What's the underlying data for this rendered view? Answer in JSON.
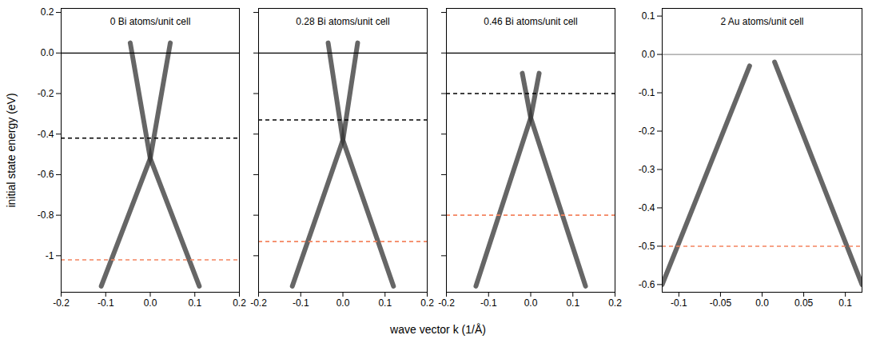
{
  "figure": {
    "ylabel": "initial state energy (eV)",
    "xlabel": "wave vector k (1/Å)"
  },
  "chart_data": [
    {
      "type": "line",
      "title": "0 Bi atoms/unit cell",
      "xlim": [
        -0.2,
        0.2
      ],
      "ylim": [
        -1.18,
        0.22
      ],
      "xticks": [
        -0.2,
        -0.1,
        {
          "value": 0,
          "label": "0.0"
        },
        0.1,
        0.2
      ],
      "yticks": [
        0.2,
        {
          "value": 0,
          "label": "0.0"
        },
        -0.2,
        -0.4,
        -0.6,
        -0.8,
        -1.0
      ],
      "series": [
        {
          "color": "#333333",
          "x": [
            -0.11,
            0,
            0.045
          ],
          "values": [
            -1.15,
            -0.52,
            0.05
          ]
        },
        {
          "color": "#333333",
          "x": [
            0.11,
            0,
            -0.045
          ],
          "values": [
            -1.15,
            -0.52,
            0.05
          ]
        }
      ],
      "reference_lines": [
        {
          "value": 0,
          "color": "#000000",
          "line_style": "solid"
        },
        {
          "value": -0.42,
          "color": "#000000",
          "line_style": "dashed"
        },
        {
          "value": -1.02,
          "color": "#f4845f",
          "line_style": "dashed"
        }
      ]
    },
    {
      "type": "line",
      "title": "0.28 Bi atoms/unit cell",
      "xlim": [
        -0.2,
        0.2
      ],
      "ylim": [
        -1.18,
        0.22
      ],
      "xticks": [
        -0.2,
        -0.1,
        {
          "value": 0,
          "label": "0.0"
        },
        0.1,
        0.2
      ],
      "yticks": [
        0.2,
        {
          "value": 0,
          "label": "0.0"
        },
        -0.2,
        -0.4,
        -0.6,
        -0.8,
        -1.0
      ],
      "tick_labels": "x",
      "series": [
        {
          "color": "#333333",
          "x": [
            -0.12,
            0,
            0.035
          ],
          "values": [
            -1.15,
            -0.43,
            0.05
          ]
        },
        {
          "color": "#333333",
          "x": [
            0.12,
            0,
            -0.035
          ],
          "values": [
            -1.15,
            -0.43,
            0.05
          ]
        }
      ],
      "reference_lines": [
        {
          "value": 0,
          "color": "#000000",
          "line_style": "solid"
        },
        {
          "value": -0.33,
          "color": "#000000",
          "line_style": "dashed"
        },
        {
          "value": -0.93,
          "color": "#f4845f",
          "line_style": "dashed"
        }
      ]
    },
    {
      "type": "line",
      "title": "0.46 Bi atoms/unit cell",
      "xlim": [
        -0.2,
        0.2
      ],
      "ylim": [
        -1.18,
        0.22
      ],
      "xticks": [
        -0.2,
        -0.1,
        {
          "value": 0,
          "label": "0.0"
        },
        0.1,
        0.2
      ],
      "yticks": [
        0.2,
        {
          "value": 0,
          "label": "0.0"
        },
        -0.2,
        -0.4,
        -0.6,
        -0.8,
        -1.0
      ],
      "tick_labels": "x",
      "series": [
        {
          "color": "#333333",
          "x": [
            -0.13,
            0,
            0.02
          ],
          "values": [
            -1.15,
            -0.32,
            -0.1
          ]
        },
        {
          "color": "#333333",
          "x": [
            0.13,
            0,
            -0.02
          ],
          "values": [
            -1.15,
            -0.32,
            -0.1
          ]
        }
      ],
      "reference_lines": [
        {
          "value": 0,
          "color": "#000000",
          "line_style": "solid"
        },
        {
          "value": -0.2,
          "color": "#000000",
          "line_style": "dashed"
        },
        {
          "value": -0.8,
          "color": "#f4845f",
          "line_style": "dashed"
        }
      ]
    },
    {
      "type": "line",
      "title": "2 Au atoms/unit cell",
      "xlim": [
        -0.12,
        0.12
      ],
      "ylim": [
        -0.62,
        0.12
      ],
      "xticks": [
        -0.1,
        -0.05,
        {
          "value": 0,
          "label": "0.0"
        },
        0.05,
        0.1
      ],
      "yticks": [
        0.1,
        {
          "value": 0,
          "label": "0.0"
        },
        -0.1,
        -0.2,
        -0.3,
        -0.4,
        -0.5,
        -0.6
      ],
      "series": [
        {
          "color": "#333333",
          "x": [
            -0.12,
            -0.015
          ],
          "values": [
            -0.6,
            -0.03
          ]
        },
        {
          "color": "#333333",
          "x": [
            0.015,
            0.12
          ],
          "values": [
            -0.02,
            -0.6
          ]
        }
      ],
      "reference_lines": [
        {
          "value": 0,
          "color": "#999999",
          "line_style": "solid"
        },
        {
          "value": -0.5,
          "color": "#f4845f",
          "line_style": "dashed"
        }
      ]
    }
  ]
}
